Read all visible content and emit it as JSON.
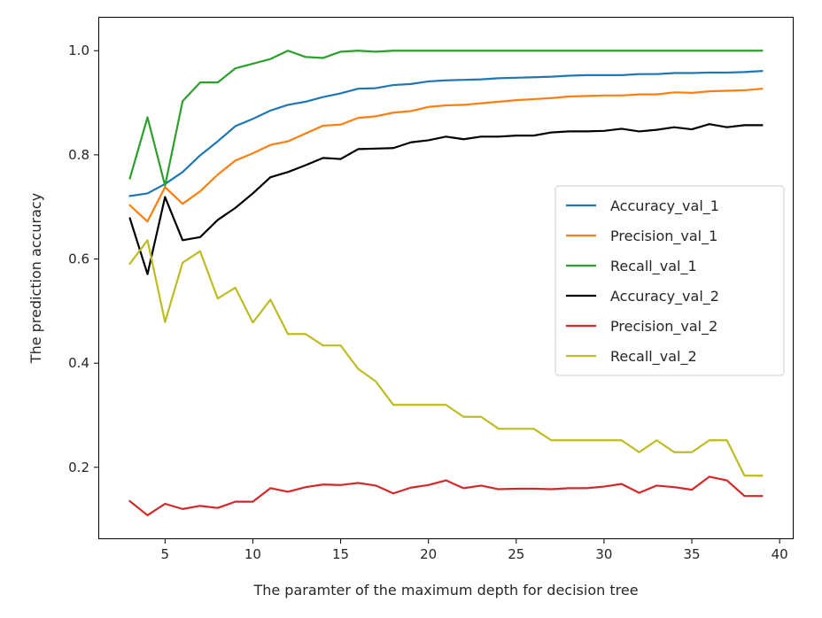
{
  "chart_data": {
    "type": "line",
    "xlabel": "The paramter of the maximum depth for decision tree",
    "ylabel": "The prediction accuracy",
    "xlim": [
      1.2,
      40.8
    ],
    "ylim": [
      0.062,
      1.065
    ],
    "xticks": [
      5,
      10,
      15,
      20,
      25,
      30,
      35,
      40
    ],
    "yticks": [
      0.2,
      0.4,
      0.6,
      0.8,
      1.0
    ],
    "xtick_labels": [
      "5",
      "10",
      "15",
      "20",
      "25",
      "30",
      "35",
      "40"
    ],
    "ytick_labels": [
      "0.2",
      "0.4",
      "0.6",
      "0.8",
      "1.0"
    ],
    "grid": false,
    "legend_position": "center-right",
    "x": [
      3,
      4,
      5,
      6,
      7,
      8,
      9,
      10,
      11,
      12,
      13,
      14,
      15,
      16,
      17,
      18,
      19,
      20,
      21,
      22,
      23,
      24,
      25,
      26,
      27,
      28,
      29,
      30,
      31,
      32,
      33,
      34,
      35,
      36,
      37,
      38,
      39
    ],
    "series": [
      {
        "name": "Accuracy_val_1",
        "color": "#1f77b4",
        "values": [
          0.721,
          0.726,
          0.744,
          0.767,
          0.799,
          0.826,
          0.855,
          0.869,
          0.885,
          0.896,
          0.902,
          0.911,
          0.918,
          0.927,
          0.928,
          0.934,
          0.936,
          0.941,
          0.943,
          0.944,
          0.945,
          0.947,
          0.948,
          0.949,
          0.95,
          0.952,
          0.953,
          0.953,
          0.953,
          0.955,
          0.955,
          0.957,
          0.957,
          0.958,
          0.958,
          0.959,
          0.961
        ]
      },
      {
        "name": "Precision_val_1",
        "color": "#ff7f0e",
        "values": [
          0.703,
          0.672,
          0.738,
          0.706,
          0.73,
          0.762,
          0.789,
          0.803,
          0.819,
          0.826,
          0.841,
          0.856,
          0.858,
          0.871,
          0.874,
          0.881,
          0.884,
          0.892,
          0.895,
          0.896,
          0.899,
          0.902,
          0.905,
          0.907,
          0.909,
          0.912,
          0.913,
          0.914,
          0.914,
          0.916,
          0.916,
          0.92,
          0.919,
          0.922,
          0.923,
          0.924,
          0.927
        ]
      },
      {
        "name": "Recall_val_1",
        "color": "#2ca02c",
        "values": [
          0.755,
          0.872,
          0.741,
          0.903,
          0.939,
          0.939,
          0.966,
          0.975,
          0.984,
          1.0,
          0.988,
          0.986,
          0.998,
          1.0,
          0.998,
          1.0,
          1.0,
          1.0,
          1.0,
          1.0,
          1.0,
          1.0,
          1.0,
          1.0,
          1.0,
          1.0,
          1.0,
          1.0,
          1.0,
          1.0,
          1.0,
          1.0,
          1.0,
          1.0,
          1.0,
          1.0,
          1.0
        ]
      },
      {
        "name": "Accuracy_val_2",
        "color": "#000000",
        "values": [
          0.678,
          0.571,
          0.719,
          0.636,
          0.642,
          0.675,
          0.698,
          0.726,
          0.757,
          0.767,
          0.78,
          0.794,
          0.792,
          0.811,
          0.812,
          0.813,
          0.824,
          0.828,
          0.835,
          0.83,
          0.835,
          0.835,
          0.837,
          0.837,
          0.843,
          0.845,
          0.845,
          0.846,
          0.85,
          0.845,
          0.848,
          0.853,
          0.849,
          0.859,
          0.853,
          0.857,
          0.857
        ]
      },
      {
        "name": "Precision_val_2",
        "color": "#d62728",
        "values": [
          0.135,
          0.108,
          0.13,
          0.12,
          0.126,
          0.122,
          0.134,
          0.134,
          0.16,
          0.153,
          0.162,
          0.167,
          0.166,
          0.17,
          0.165,
          0.15,
          0.161,
          0.166,
          0.175,
          0.16,
          0.165,
          0.158,
          0.159,
          0.159,
          0.158,
          0.16,
          0.16,
          0.163,
          0.168,
          0.151,
          0.165,
          0.162,
          0.157,
          0.182,
          0.175,
          0.145,
          0.145
        ]
      },
      {
        "name": "Recall_val_2",
        "color": "#bcbd22",
        "values": [
          0.591,
          0.636,
          0.479,
          0.593,
          0.615,
          0.524,
          0.545,
          0.478,
          0.522,
          0.456,
          0.456,
          0.434,
          0.434,
          0.389,
          0.365,
          0.32,
          0.32,
          0.32,
          0.32,
          0.297,
          0.297,
          0.274,
          0.274,
          0.274,
          0.252,
          0.252,
          0.252,
          0.252,
          0.252,
          0.229,
          0.252,
          0.229,
          0.229,
          0.252,
          0.252,
          0.184,
          0.184
        ]
      }
    ]
  }
}
